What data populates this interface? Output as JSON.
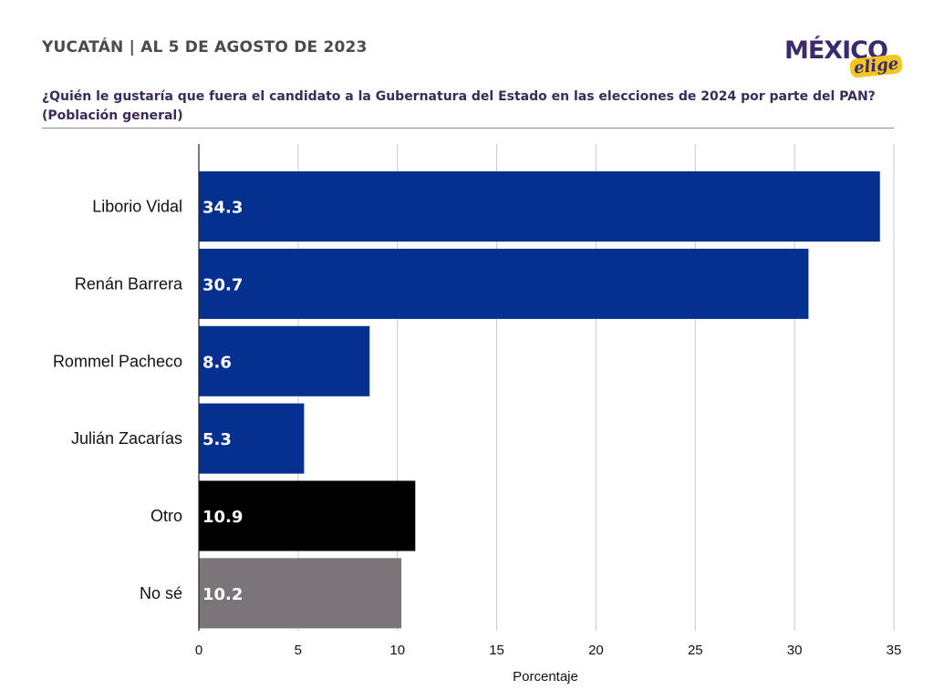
{
  "header": {
    "title": "YUCATÁN | AL 5 DE AGOSTO DE 2023",
    "logo_main": "MÉXICO",
    "logo_sub": "elige",
    "question_line1": "¿Quién le gustaría que fuera el candidato a la Gubernatura del Estado en las elecciones de 2024 por parte del PAN?",
    "question_line2": "(Población general)"
  },
  "colors": {
    "candidate": "#06308f",
    "otro": "#000000",
    "nose": "#7a7579",
    "logo": "#3b2a6e",
    "logo_accent": "#f3c623"
  },
  "chart_data": {
    "type": "bar",
    "orientation": "horizontal",
    "title": "¿Quién le gustaría que fuera el candidato a la Gubernatura del Estado en las elecciones de 2024 por parte del PAN? (Población general)",
    "categories": [
      "Liborio Vidal",
      "Renán Barrera",
      "Rommel Pacheco",
      "Julián Zacarías",
      "Otro",
      "No sé"
    ],
    "values": [
      34.3,
      30.7,
      8.6,
      5.3,
      10.9,
      10.2
    ],
    "value_labels": [
      "34.3",
      "30.7",
      "8.6",
      "5.3",
      "10.9",
      "10.2"
    ],
    "bar_colors": [
      "#06308f",
      "#06308f",
      "#06308f",
      "#06308f",
      "#000000",
      "#7a7579"
    ],
    "xlabel": "Porcentaje",
    "ylabel": "",
    "xlim": [
      0,
      35
    ],
    "xticks": [
      0,
      5,
      10,
      15,
      20,
      25,
      30,
      35
    ],
    "xtick_labels": [
      "0",
      "5",
      "10",
      "15",
      "20",
      "25",
      "30",
      "35"
    ],
    "grid": true,
    "legend": "none"
  }
}
